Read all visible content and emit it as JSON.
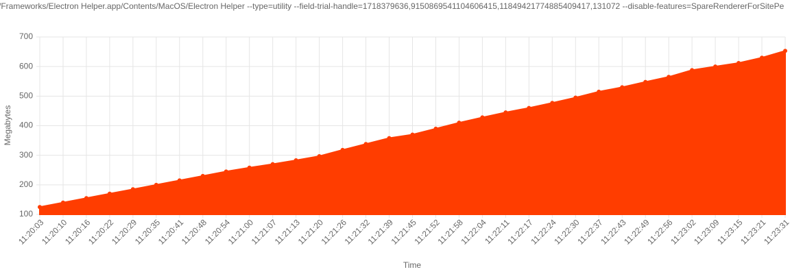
{
  "chart_data": {
    "type": "area",
    "title": "/Frameworks/Electron Helper.app/Contents/MacOS/Electron Helper --type=utility --field-trial-handle=1718379636,9150869541104606415,11849421774885409417,131072 --disable-features=SpareRendererForSitePe",
    "x_label": "Time",
    "y_label": "Megabytes",
    "categories": [
      "11:20:03",
      "11:20:10",
      "11:20:16",
      "11:20:22",
      "11:20:29",
      "11:20:35",
      "11:20:41",
      "11:20:48",
      "11:20:54",
      "11:21:00",
      "11:21:07",
      "11:21:13",
      "11:21:20",
      "11:21:26",
      "11:21:32",
      "11:21:39",
      "11:21:45",
      "11:21:52",
      "11:21:58",
      "11:22:04",
      "11:22:11",
      "11:22:17",
      "11:22:24",
      "11:22:30",
      "11:22:37",
      "11:22:43",
      "11:22:49",
      "11:22:56",
      "11:23:02",
      "11:23:09",
      "11:23:15",
      "11:23:21",
      "11:23:31"
    ],
    "series": [
      {
        "name": "Megabytes",
        "color": "#ff3d00",
        "values": [
          125,
          140,
          155,
          170,
          185,
          200,
          215,
          230,
          245,
          258,
          270,
          283,
          297,
          318,
          338,
          358,
          370,
          390,
          410,
          428,
          445,
          460,
          477,
          495,
          515,
          530,
          548,
          565,
          588,
          600,
          612,
          630,
          653
        ]
      }
    ],
    "ylim": [
      100,
      700
    ],
    "yticks": [
      100,
      200,
      300,
      400,
      500,
      600,
      700
    ],
    "grid": true
  }
}
